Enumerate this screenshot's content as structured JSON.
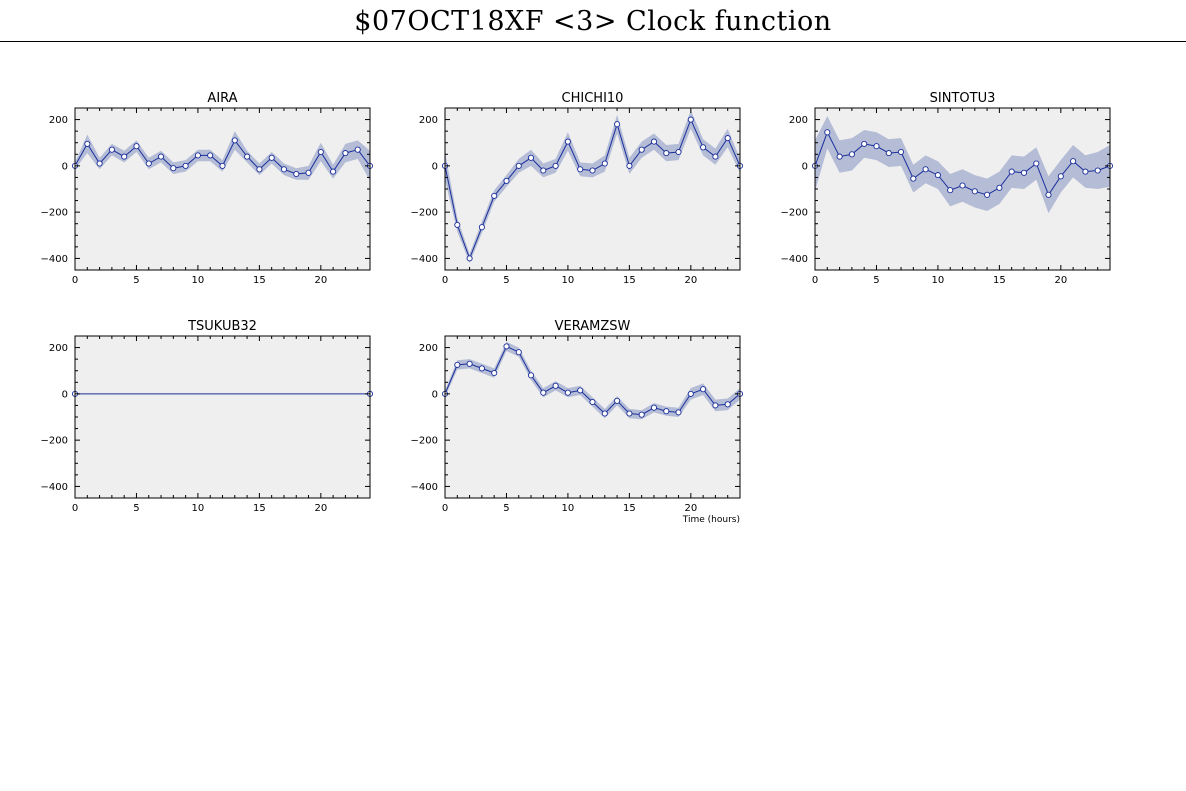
{
  "page": {
    "title": "$07OCT18XF <3>  Clock function"
  },
  "colors": {
    "panel_bg": "#efefef",
    "band": "#b4bcd6",
    "line": "#1a2e9a",
    "marker_fill": "#ffffff",
    "axis": "#000000"
  },
  "chart_data": [
    {
      "type": "line",
      "title": "AIRA",
      "xlim": [
        0,
        24
      ],
      "ylim": [
        -450,
        250
      ],
      "xticks": [
        0,
        5,
        10,
        15,
        20
      ],
      "yticks": [
        200,
        0,
        -200,
        -400
      ],
      "xlabel": "",
      "x": [
        0,
        1,
        2,
        3,
        4,
        5,
        6,
        7,
        8,
        9,
        10,
        11,
        12,
        13,
        14,
        15,
        16,
        17,
        18,
        19,
        20,
        21,
        22,
        23,
        24
      ],
      "y": [
        0,
        95,
        10,
        70,
        40,
        85,
        10,
        40,
        -10,
        0,
        45,
        45,
        0,
        110,
        40,
        -15,
        35,
        -15,
        -35,
        -30,
        60,
        -25,
        55,
        70,
        0
      ],
      "band": [
        15,
        40,
        25,
        25,
        25,
        25,
        25,
        25,
        25,
        25,
        25,
        25,
        25,
        40,
        25,
        25,
        25,
        25,
        25,
        30,
        40,
        30,
        40,
        40,
        65
      ]
    },
    {
      "type": "line",
      "title": "CHICHI10",
      "xlim": [
        0,
        24
      ],
      "ylim": [
        -450,
        250
      ],
      "xticks": [
        0,
        5,
        10,
        15,
        20
      ],
      "yticks": [
        200,
        0,
        -200,
        -400
      ],
      "xlabel": "",
      "x": [
        0,
        1,
        2,
        3,
        4,
        5,
        6,
        7,
        8,
        9,
        10,
        11,
        12,
        13,
        14,
        15,
        16,
        17,
        18,
        19,
        20,
        21,
        22,
        23,
        24
      ],
      "y": [
        0,
        -255,
        -400,
        -265,
        -130,
        -65,
        0,
        35,
        -20,
        0,
        105,
        -15,
        -20,
        10,
        180,
        0,
        70,
        105,
        55,
        60,
        200,
        80,
        40,
        120,
        0
      ],
      "band": [
        60,
        30,
        20,
        25,
        25,
        25,
        30,
        35,
        30,
        30,
        40,
        30,
        30,
        35,
        40,
        35,
        35,
        35,
        35,
        35,
        40,
        35,
        35,
        40,
        30
      ]
    },
    {
      "type": "line",
      "title": "SINTOTU3",
      "xlim": [
        0,
        24
      ],
      "ylim": [
        -450,
        250
      ],
      "xticks": [
        0,
        5,
        10,
        15,
        20
      ],
      "yticks": [
        200,
        0,
        -200,
        -400
      ],
      "xlabel": "",
      "x": [
        0,
        1,
        2,
        3,
        4,
        5,
        6,
        7,
        8,
        9,
        10,
        11,
        12,
        13,
        14,
        15,
        16,
        17,
        18,
        19,
        20,
        21,
        22,
        23,
        24
      ],
      "y": [
        0,
        145,
        40,
        50,
        95,
        85,
        55,
        60,
        -55,
        -15,
        -40,
        -105,
        -85,
        -110,
        -125,
        -95,
        -25,
        -30,
        10,
        -125,
        -45,
        20,
        -25,
        -20,
        0
      ],
      "band": [
        110,
        70,
        70,
        70,
        60,
        60,
        60,
        60,
        60,
        60,
        60,
        70,
        70,
        70,
        70,
        70,
        70,
        70,
        70,
        80,
        70,
        70,
        70,
        80,
        90
      ]
    },
    {
      "type": "line",
      "title": "TSUKUB32",
      "xlim": [
        0,
        24
      ],
      "ylim": [
        -450,
        250
      ],
      "xticks": [
        0,
        5,
        10,
        15,
        20
      ],
      "yticks": [
        200,
        0,
        -200,
        -400
      ],
      "xlabel": "",
      "x": [
        0,
        24
      ],
      "y": [
        0,
        0
      ],
      "band": [
        0,
        0
      ]
    },
    {
      "type": "line",
      "title": "VERAMZSW",
      "xlim": [
        0,
        24
      ],
      "ylim": [
        -450,
        250
      ],
      "xticks": [
        0,
        5,
        10,
        15,
        20
      ],
      "yticks": [
        200,
        0,
        -200,
        -400
      ],
      "xlabel": "Time (hours)",
      "x": [
        0,
        1,
        2,
        3,
        4,
        5,
        6,
        7,
        8,
        9,
        10,
        11,
        12,
        13,
        14,
        15,
        16,
        17,
        18,
        19,
        20,
        21,
        22,
        23,
        24
      ],
      "y": [
        0,
        125,
        130,
        110,
        90,
        205,
        180,
        80,
        5,
        35,
        5,
        15,
        -35,
        -85,
        -30,
        -85,
        -90,
        -60,
        -75,
        -80,
        0,
        20,
        -50,
        -45,
        0
      ],
      "band": [
        15,
        20,
        20,
        20,
        20,
        20,
        20,
        20,
        20,
        20,
        20,
        20,
        20,
        20,
        20,
        20,
        20,
        20,
        20,
        20,
        25,
        25,
        25,
        25,
        25
      ]
    }
  ]
}
